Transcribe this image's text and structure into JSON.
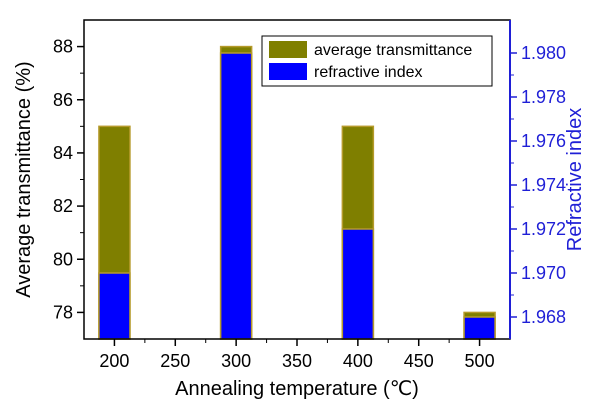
{
  "chart_data": {
    "type": "bar",
    "title": "",
    "xlabel": "Annealing temperature (℃)",
    "ylabel_left": "Average transmittance (%)",
    "ylabel_right": "Refractive index",
    "x_ticks": [
      200,
      250,
      300,
      350,
      400,
      450,
      500
    ],
    "xlim": [
      175,
      525
    ],
    "ylim_left": [
      77,
      89
    ],
    "y_ticks_left": [
      78,
      80,
      82,
      84,
      86,
      88
    ],
    "ylim_right": [
      1.967,
      1.9815
    ],
    "y_ticks_right": [
      "1.968",
      "1.970",
      "1.972",
      "1.974",
      "1.976",
      "1.978",
      "1.980"
    ],
    "grid": false,
    "legend_position": "top-right",
    "series": [
      {
        "name": "average transmittance",
        "axis": "left",
        "color": "#7f7f00",
        "x": [
          200,
          300,
          400,
          500
        ],
        "values": [
          85.0,
          88.0,
          85.0,
          78.0
        ]
      },
      {
        "name": "refractive index",
        "axis": "right",
        "color": "#0000ff",
        "x": [
          200,
          300,
          400,
          500
        ],
        "values": [
          1.97,
          1.98,
          1.972,
          1.968
        ]
      }
    ],
    "colors": {
      "left_axis": "#000000",
      "right_axis": "#1f1fd6",
      "bar_border": "#b59a2a"
    }
  }
}
